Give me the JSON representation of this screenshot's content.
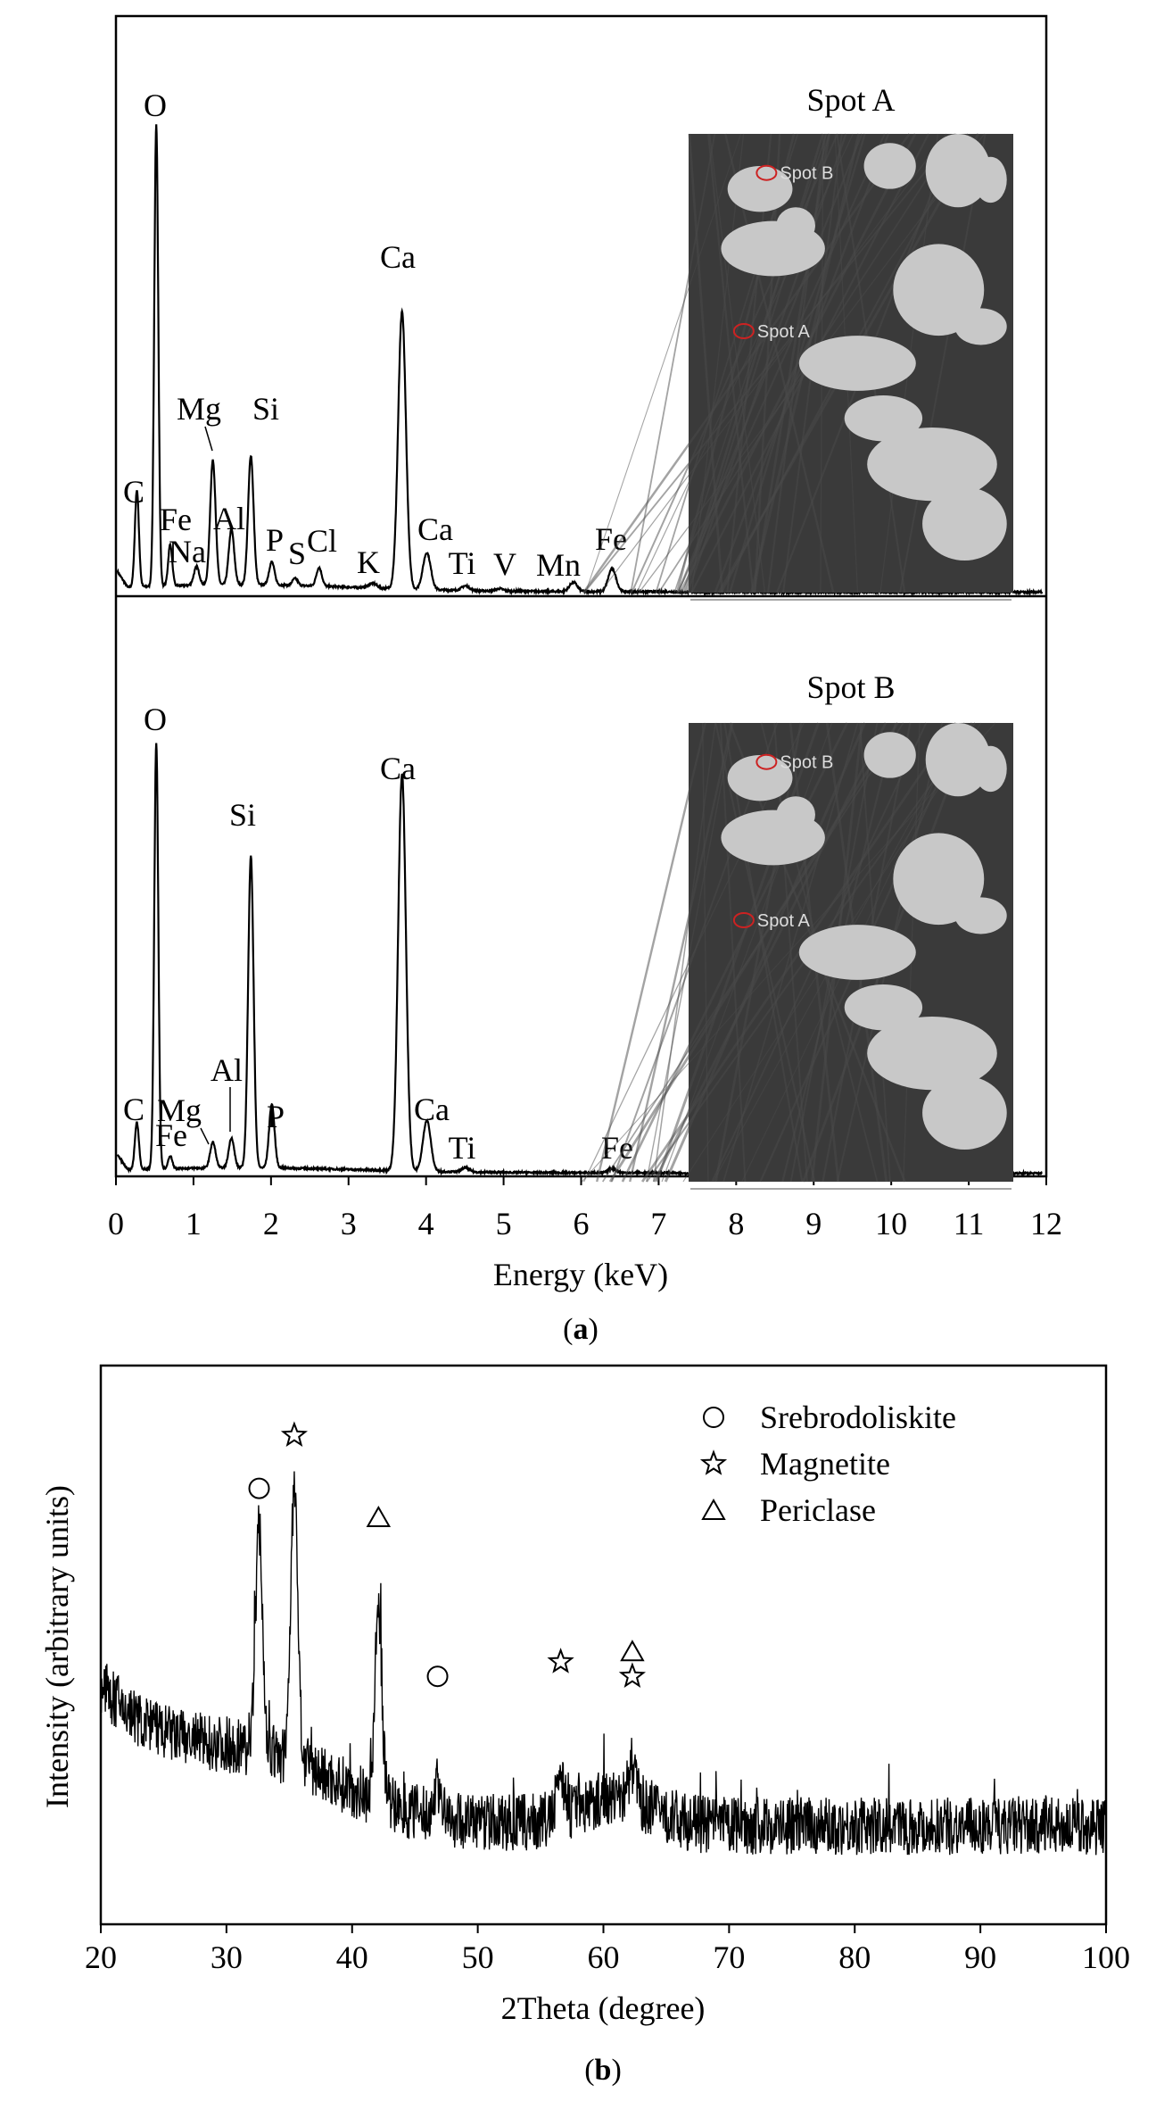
{
  "colors": {
    "trace": "#000000",
    "sem_background": "#3a3a3a",
    "sem_particle": "#c8c8c8",
    "spot_marker": "#cc2222"
  },
  "panel_a": {
    "caption_open": "(",
    "caption_letter": "a",
    "caption_close": ")"
  },
  "panel_b": {
    "caption_open": "(",
    "caption_letter": "b",
    "caption_close": ")"
  },
  "chart_data": [
    {
      "type": "line",
      "panel": "a-upper",
      "title": "",
      "xlabel": "Energy (keV)",
      "ylabel": "",
      "xlim": [
        0,
        12
      ],
      "ylim": [
        0,
        100
      ],
      "xticks": [
        0,
        1,
        2,
        3,
        4,
        5,
        6,
        7,
        8,
        9,
        10,
        11,
        12
      ],
      "inset": {
        "title": "Spot A",
        "labels": [
          "Spot B",
          "Spot A"
        ]
      },
      "peaks": [
        {
          "label": "C",
          "x": 0.27,
          "y": 21
        },
        {
          "label": "O",
          "x": 0.52,
          "y": 100
        },
        {
          "label": "Fe",
          "x": 0.7,
          "y": 9
        },
        {
          "label": "Na",
          "x": 1.04,
          "y": 4
        },
        {
          "label": "Mg",
          "x": 1.25,
          "y": 27
        },
        {
          "label": "Al",
          "x": 1.49,
          "y": 12
        },
        {
          "label": "Si",
          "x": 1.74,
          "y": 28
        },
        {
          "label": "P",
          "x": 2.01,
          "y": 5
        },
        {
          "label": "S",
          "x": 2.31,
          "y": 1.5
        },
        {
          "label": "Cl",
          "x": 2.62,
          "y": 4
        },
        {
          "label": "K",
          "x": 3.31,
          "y": 1
        },
        {
          "label": "Ca",
          "x": 3.69,
          "y": 60
        },
        {
          "label": "Ca",
          "x": 4.01,
          "y": 8
        },
        {
          "label": "Ti",
          "x": 4.51,
          "y": 1
        },
        {
          "label": "V",
          "x": 4.95,
          "y": 0.5
        },
        {
          "label": "Mn",
          "x": 5.9,
          "y": 2
        },
        {
          "label": "Fe",
          "x": 6.4,
          "y": 5
        }
      ]
    },
    {
      "type": "line",
      "panel": "a-lower",
      "title": "",
      "xlabel": "Energy (keV)",
      "ylabel": "",
      "xlim": [
        0,
        12
      ],
      "ylim": [
        0,
        100
      ],
      "xticks": [
        0,
        1,
        2,
        3,
        4,
        5,
        6,
        7,
        8,
        9,
        10,
        11,
        12
      ],
      "inset": {
        "title": "Spot B",
        "labels": [
          "Spot B",
          "Spot A"
        ]
      },
      "peaks": [
        {
          "label": "C",
          "x": 0.27,
          "y": 11
        },
        {
          "label": "O",
          "x": 0.52,
          "y": 100
        },
        {
          "label": "Fe",
          "x": 0.7,
          "y": 3
        },
        {
          "label": "Mg",
          "x": 1.25,
          "y": 6
        },
        {
          "label": "Al",
          "x": 1.49,
          "y": 7
        },
        {
          "label": "Si",
          "x": 1.74,
          "y": 73
        },
        {
          "label": "P",
          "x": 2.01,
          "y": 15
        },
        {
          "label": "Ca",
          "x": 3.69,
          "y": 93
        },
        {
          "label": "Ca",
          "x": 4.01,
          "y": 12
        },
        {
          "label": "Ti",
          "x": 4.51,
          "y": 1
        },
        {
          "label": "Fe",
          "x": 6.4,
          "y": 1
        }
      ]
    },
    {
      "type": "line",
      "panel": "b",
      "title": "",
      "xlabel": "2Theta (degree)",
      "ylabel": "Intensity (arbitrary units)",
      "xlim": [
        20,
        100
      ],
      "ylim": [
        0,
        100
      ],
      "xticks": [
        20,
        30,
        40,
        50,
        60,
        70,
        80,
        90,
        100
      ],
      "legend": {
        "position": "top-right",
        "entries": [
          {
            "symbol": "circle",
            "name": "Srebrodoliskite"
          },
          {
            "symbol": "star",
            "name": "Magnetite"
          },
          {
            "symbol": "triangle",
            "name": "Periclase"
          }
        ]
      },
      "peaks": [
        {
          "x": 32.6,
          "y": 76,
          "markers": [
            "circle"
          ]
        },
        {
          "x": 35.4,
          "y": 87,
          "markers": [
            "star"
          ]
        },
        {
          "x": 42.1,
          "y": 70,
          "markers": [
            "triangle"
          ]
        },
        {
          "x": 46.8,
          "y": 37,
          "markers": [
            "circle"
          ]
        },
        {
          "x": 56.6,
          "y": 40,
          "markers": [
            "star"
          ]
        },
        {
          "x": 62.3,
          "y": 37,
          "markers": [
            "star",
            "triangle"
          ]
        }
      ]
    }
  ]
}
